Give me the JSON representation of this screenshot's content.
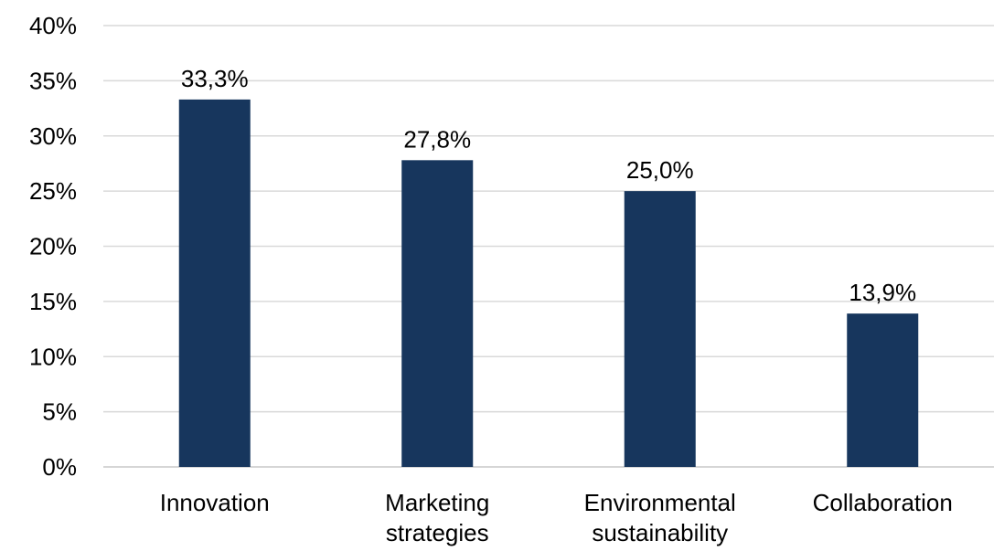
{
  "chart_data": {
    "type": "bar",
    "title": "",
    "xlabel": "",
    "ylabel": "",
    "categories": [
      [
        "Innovation"
      ],
      [
        "Marketing",
        "strategies"
      ],
      [
        "Environmental",
        "sustainability"
      ],
      [
        "Collaboration"
      ]
    ],
    "values": [
      33.3,
      27.8,
      25.0,
      13.9
    ],
    "data_labels": [
      "33,3%",
      "27,8%",
      "25,0%",
      "13,9%"
    ],
    "ylim": [
      0,
      40
    ],
    "yticks": [
      0,
      5,
      10,
      15,
      20,
      25,
      30,
      35,
      40
    ],
    "ytick_labels": [
      "0%",
      "5%",
      "10%",
      "15%",
      "20%",
      "25%",
      "30%",
      "35%",
      "40%"
    ],
    "grid": true,
    "legend": "none",
    "bar_color": "#17365d",
    "grid_color": "#d9d9d9"
  }
}
